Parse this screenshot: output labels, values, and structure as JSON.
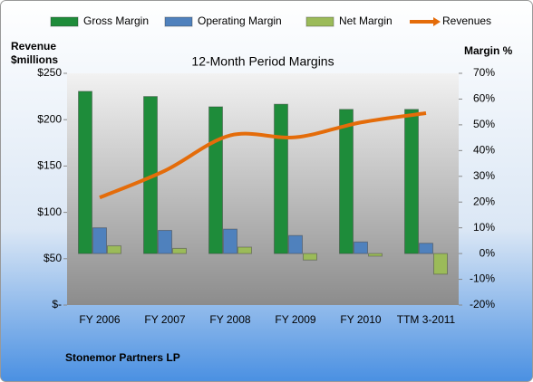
{
  "chart_data": {
    "type": "bar-line",
    "title": "12-Month Period Margins",
    "y_label": [
      "Revenue",
      "$millions"
    ],
    "y2_label": "Margin %",
    "footer": "Stonemor Partners LP",
    "categories": [
      "FY 2006",
      "FY 2007",
      "FY 2008",
      "FY 2009",
      "FY 2010",
      "TTM 3-2011"
    ],
    "series": [
      {
        "name": "Gross Margin",
        "type": "bar",
        "axis": "y2",
        "color": "#1e8c3a",
        "values": [
          63,
          61,
          57,
          58,
          56,
          56
        ]
      },
      {
        "name": "Operating Margin",
        "type": "bar",
        "axis": "y2",
        "color": "#4f81bd",
        "values": [
          10,
          9,
          9.5,
          7,
          4.5,
          4
        ]
      },
      {
        "name": "Net Margin",
        "type": "bar",
        "axis": "y2",
        "color": "#9bbb59",
        "values": [
          3,
          2,
          2.5,
          -2.5,
          -1,
          -8
        ]
      },
      {
        "name": "Revenues",
        "type": "line",
        "axis": "y",
        "color": "#e46c0a",
        "values": [
          116,
          145,
          183,
          181,
          197,
          207
        ]
      }
    ],
    "ylim": [
      0,
      250
    ],
    "yticks": [
      {
        "value": 0,
        "label": "$-"
      },
      {
        "value": 50,
        "label": "$50"
      },
      {
        "value": 100,
        "label": "$100"
      },
      {
        "value": 150,
        "label": "$150"
      },
      {
        "value": 200,
        "label": "$200"
      },
      {
        "value": 250,
        "label": "$250"
      }
    ],
    "y2lim": [
      -20,
      70
    ],
    "y2ticks": [
      {
        "value": -20,
        "label": "-20%"
      },
      {
        "value": -10,
        "label": "-10%"
      },
      {
        "value": 0,
        "label": "0%"
      },
      {
        "value": 10,
        "label": "10%"
      },
      {
        "value": 20,
        "label": "20%"
      },
      {
        "value": 30,
        "label": "30%"
      },
      {
        "value": 40,
        "label": "40%"
      },
      {
        "value": 50,
        "label": "50%"
      },
      {
        "value": 60,
        "label": "60%"
      },
      {
        "value": 70,
        "label": "70%"
      }
    ]
  }
}
